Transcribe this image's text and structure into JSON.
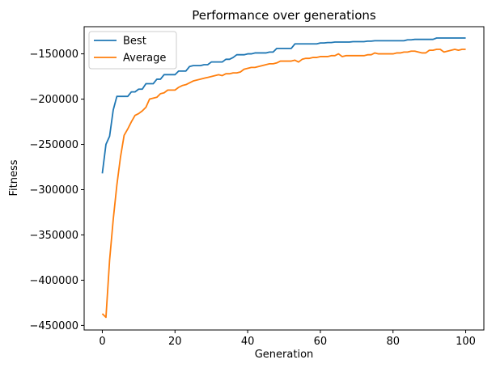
{
  "chart_data": {
    "type": "line",
    "title": "Performance over generations",
    "xlabel": "Generation",
    "ylabel": "Fitness",
    "xlim": [
      -5,
      105
    ],
    "ylim": [
      -455000,
      -120000
    ],
    "xticks": [
      0,
      20,
      40,
      60,
      80,
      100
    ],
    "xtick_labels": [
      "0",
      "20",
      "40",
      "60",
      "80",
      "100"
    ],
    "yticks": [
      -450000,
      -400000,
      -350000,
      -300000,
      -250000,
      -200000,
      -150000
    ],
    "ytick_labels": [
      "−450000",
      "−400000",
      "−350000",
      "−300000",
      "−250000",
      "−200000",
      "−150000"
    ],
    "grid": false,
    "legend_position": "top-left",
    "x": [
      0,
      1,
      2,
      3,
      4,
      5,
      6,
      7,
      8,
      9,
      10,
      11,
      12,
      13,
      14,
      15,
      16,
      17,
      18,
      19,
      20,
      21,
      22,
      23,
      24,
      25,
      26,
      27,
      28,
      29,
      30,
      31,
      32,
      33,
      34,
      35,
      36,
      37,
      38,
      39,
      40,
      41,
      42,
      43,
      44,
      45,
      46,
      47,
      48,
      49,
      50,
      51,
      52,
      53,
      54,
      55,
      56,
      57,
      58,
      59,
      60,
      61,
      62,
      63,
      64,
      65,
      66,
      67,
      68,
      69,
      70,
      71,
      72,
      73,
      74,
      75,
      76,
      77,
      78,
      79,
      80,
      81,
      82,
      83,
      84,
      85,
      86,
      87,
      88,
      89,
      90,
      91,
      92,
      93,
      94,
      95,
      96,
      97,
      98,
      99,
      100
    ],
    "series": [
      {
        "name": "Best",
        "color": "#1f77b4",
        "values": [
          -282000,
          -250000,
          -241000,
          -212000,
          -197000,
          -197000,
          -197000,
          -197000,
          -192000,
          -192000,
          -189000,
          -189000,
          -183000,
          -183000,
          -183000,
          -178000,
          -178000,
          -173000,
          -173000,
          -173000,
          -173000,
          -169000,
          -169000,
          -169000,
          -164000,
          -163000,
          -163000,
          -163000,
          -162000,
          -162000,
          -159000,
          -159000,
          -159000,
          -159000,
          -156000,
          -156000,
          -154000,
          -151000,
          -151000,
          -151000,
          -150000,
          -150000,
          -149000,
          -149000,
          -149000,
          -149000,
          -148000,
          -148000,
          -144000,
          -144000,
          -144000,
          -144000,
          -144000,
          -139000,
          -139000,
          -139000,
          -139000,
          -139000,
          -139000,
          -139000,
          -138000,
          -138000,
          -137500,
          -137500,
          -137000,
          -137000,
          -137000,
          -137000,
          -137000,
          -136500,
          -136500,
          -136500,
          -136500,
          -136000,
          -136000,
          -135500,
          -135500,
          -135500,
          -135500,
          -135500,
          -135500,
          -135500,
          -135500,
          -135500,
          -134500,
          -134500,
          -134000,
          -134000,
          -134000,
          -134000,
          -134000,
          -134000,
          -132500,
          -132500,
          -132500,
          -132500,
          -132500,
          -132500,
          -132500,
          -132500,
          -132500
        ]
      },
      {
        "name": "Average",
        "color": "#ff7f0e",
        "values": [
          -437000,
          -441000,
          -378000,
          -333000,
          -295000,
          -264000,
          -240000,
          -233000,
          -225000,
          -218000,
          -216000,
          -213000,
          -209000,
          -200000,
          -199000,
          -198000,
          -194000,
          -193000,
          -190000,
          -190000,
          -190000,
          -187000,
          -185000,
          -184000,
          -182000,
          -180000,
          -179000,
          -178000,
          -177000,
          -176000,
          -175000,
          -174000,
          -173000,
          -174000,
          -172000,
          -172000,
          -171000,
          -171000,
          -170000,
          -167000,
          -166000,
          -165000,
          -165000,
          -164000,
          -163000,
          -162000,
          -161000,
          -161000,
          -160000,
          -158000,
          -158000,
          -158000,
          -158000,
          -157000,
          -159000,
          -156000,
          -155000,
          -155000,
          -154000,
          -154000,
          -153000,
          -153000,
          -153000,
          -152000,
          -152000,
          -150000,
          -153000,
          -152000,
          -152000,
          -152000,
          -152000,
          -152000,
          -152000,
          -151000,
          -151000,
          -149000,
          -150000,
          -150000,
          -150000,
          -150000,
          -150000,
          -149000,
          -149000,
          -148000,
          -148000,
          -147000,
          -147000,
          -148000,
          -149000,
          -149000,
          -146000,
          -146000,
          -145000,
          -145000,
          -148000,
          -147000,
          -146000,
          -145000,
          -146000,
          -145000,
          -145000
        ]
      }
    ]
  }
}
